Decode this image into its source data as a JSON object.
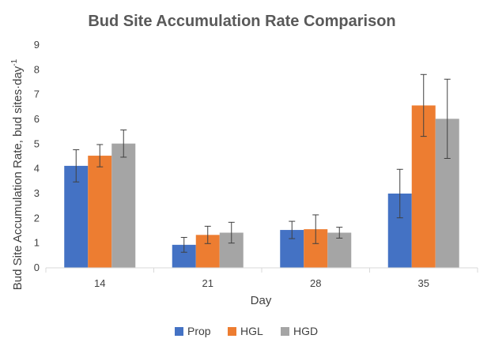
{
  "chart_data": {
    "type": "bar",
    "title": "Bud Site Accumulation Rate Comparison",
    "xlabel": "Day",
    "ylabel": "Bud Site Accumulation Rate, bud sites·day",
    "ylabel_superscript": "-1",
    "ylim": [
      0,
      9
    ],
    "yticks": [
      0,
      1,
      2,
      3,
      4,
      5,
      6,
      7,
      8,
      9
    ],
    "categories": [
      "14",
      "21",
      "28",
      "35"
    ],
    "legend_position": "bottom",
    "grid": false,
    "series": [
      {
        "name": "Prop",
        "color": "#4472C4",
        "values": [
          4.12,
          0.93,
          1.53,
          3.0
        ],
        "errors": [
          0.65,
          0.3,
          0.35,
          0.98
        ]
      },
      {
        "name": "HGL",
        "color": "#ED7D31",
        "values": [
          4.53,
          1.33,
          1.56,
          6.56
        ],
        "errors": [
          0.45,
          0.35,
          0.58,
          1.25
        ]
      },
      {
        "name": "HGD",
        "color": "#A5A5A5",
        "values": [
          5.02,
          1.42,
          1.42,
          6.02
        ],
        "errors": [
          0.55,
          0.42,
          0.22,
          1.6
        ]
      }
    ]
  }
}
